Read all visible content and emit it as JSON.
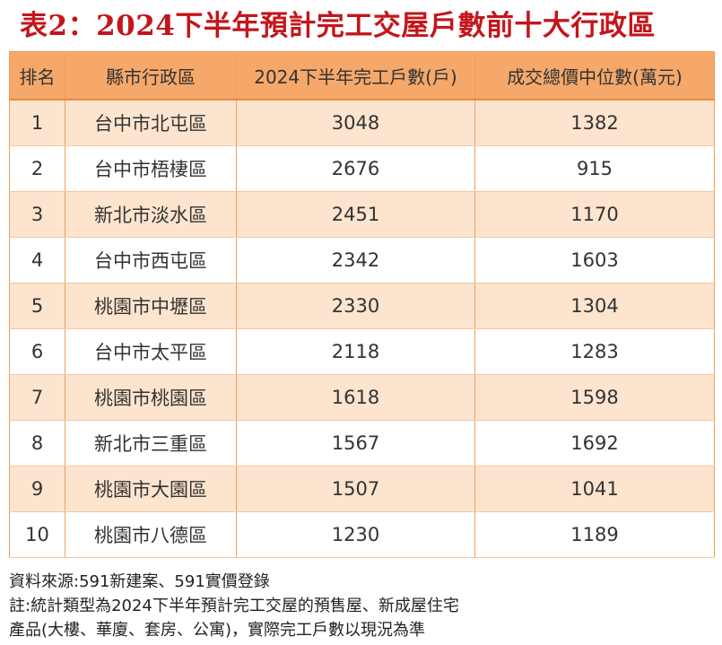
{
  "title": "表2：2024下半年預計完工交屋戶數前十大行政區",
  "headers": [
    "排名",
    "縣市行政區",
    "2024下半年完工戶數(戶)",
    "成交總價中位數(萬元)"
  ],
  "notes": [
    "資料來源:591新建案、591實價登錄",
    "註:統計類型為2024下半年預計完工交屋的預售屋、新成屋住宅",
    "產品(大樓、華廈、套房、公寓)，實際完工戶數以現況為準"
  ],
  "colors": {
    "title": "#c3161c",
    "header_bg": "#f5a86a",
    "row_alt_bg": "#fde4cf",
    "border": "#f0a05a"
  },
  "chart_data": {
    "type": "table",
    "title": "表2：2024下半年預計完工交屋戶數前十大行政區",
    "columns": [
      "排名",
      "縣市行政區",
      "2024下半年完工戶數(戶)",
      "成交總價中位數(萬元)"
    ],
    "rows": [
      [
        "1",
        "台中市北屯區",
        "3048",
        "1382"
      ],
      [
        "2",
        "台中市梧棲區",
        "2676",
        "915"
      ],
      [
        "3",
        "新北市淡水區",
        "2451",
        "1170"
      ],
      [
        "4",
        "台中市西屯區",
        "2342",
        "1603"
      ],
      [
        "5",
        "桃園市中壢區",
        "2330",
        "1304"
      ],
      [
        "6",
        "台中市太平區",
        "2118",
        "1283"
      ],
      [
        "7",
        "桃園市桃園區",
        "1618",
        "1598"
      ],
      [
        "8",
        "新北市三重區",
        "1567",
        "1692"
      ],
      [
        "9",
        "桃園市大園區",
        "1507",
        "1041"
      ],
      [
        "10",
        "桃園市八德區",
        "1230",
        "1189"
      ]
    ]
  }
}
